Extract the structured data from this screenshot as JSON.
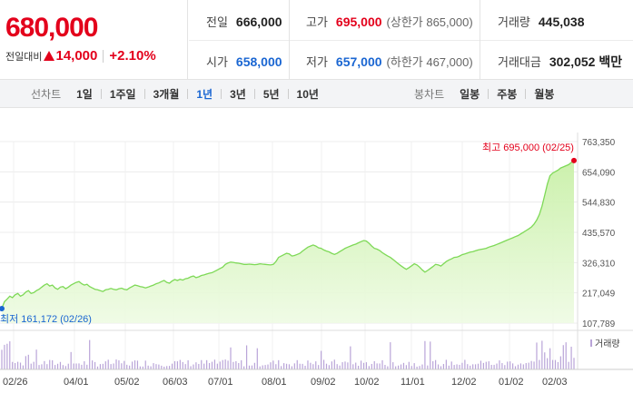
{
  "quote": {
    "price": "680,000",
    "change_label": "전일대비",
    "change_abs": "14,000",
    "change_pct": "+2.10%"
  },
  "stats": {
    "prev_close_label": "전일",
    "prev_close": "666,000",
    "high_label": "고가",
    "high": "695,000",
    "high_limit": "(상한가 865,000)",
    "volume_label": "거래량",
    "volume": "445,038",
    "open_label": "시가",
    "open": "658,000",
    "low_label": "저가",
    "low": "657,000",
    "low_limit": "(하한가 467,000)",
    "amount_label": "거래대금",
    "amount": "302,052 백만"
  },
  "tabs": {
    "line_title": "선차트",
    "line_tabs": [
      "1일",
      "1주일",
      "3개월",
      "1년",
      "3년",
      "5년",
      "10년"
    ],
    "line_active": "1년",
    "candle_title": "봉차트",
    "candle_tabs": [
      "일봉",
      "주봉",
      "월봉"
    ]
  },
  "colors": {
    "up": "#e3001b",
    "down": "#1a66d2",
    "line": "#7ed957",
    "volume": "#b9a4d8"
  },
  "chart_data": {
    "type": "area",
    "ylim": [
      107789,
      763350
    ],
    "y_ticks": [
      "763,350",
      "654,090",
      "544,830",
      "435,570",
      "326,310",
      "217,049",
      "107,789"
    ],
    "x_ticks": [
      "02/26",
      "04/01",
      "05/02",
      "06/03",
      "07/01",
      "08/01",
      "09/02",
      "10/02",
      "11/01",
      "12/02",
      "01/02",
      "02/03"
    ],
    "max_annotation": "최고 695,000 (02/25)",
    "min_annotation": "최저 161,172 (02/26)",
    "volume_legend": "거래량",
    "series_close": [
      161172,
      185000,
      195000,
      205000,
      200000,
      210000,
      215000,
      205000,
      210000,
      220000,
      225000,
      215000,
      218000,
      225000,
      230000,
      238000,
      245000,
      250000,
      242000,
      245000,
      235000,
      230000,
      238000,
      240000,
      232000,
      238000,
      245000,
      250000,
      255000,
      258000,
      250000,
      245000,
      248000,
      240000,
      235000,
      230000,
      228000,
      225000,
      222000,
      228000,
      230000,
      233000,
      230000,
      228000,
      232000,
      234000,
      230000,
      228000,
      235000,
      240000,
      245000,
      243000,
      240000,
      238000,
      235000,
      238000,
      242000,
      245000,
      250000,
      253000,
      258000,
      262000,
      255000,
      252000,
      260000,
      265000,
      262000,
      266000,
      263000,
      268000,
      270000,
      275000,
      278000,
      272000,
      275000,
      280000,
      282000,
      285000,
      288000,
      290000,
      295000,
      300000,
      305000,
      310000,
      320000,
      325000,
      328000,
      327000,
      325000,
      324000,
      322000,
      320000,
      320000,
      321000,
      320000,
      319000,
      320000,
      322000,
      321000,
      320000,
      319000,
      318000,
      320000,
      330000,
      345000,
      350000,
      355000,
      360000,
      358000,
      350000,
      352000,
      356000,
      360000,
      368000,
      375000,
      382000,
      386000,
      390000,
      386000,
      380000,
      378000,
      372000,
      368000,
      365000,
      360000,
      356000,
      360000,
      366000,
      372000,
      378000,
      382000,
      386000,
      390000,
      393000,
      398000,
      402000,
      406000,
      404000,
      396000,
      386000,
      378000,
      375000,
      370000,
      362000,
      356000,
      350000,
      345000,
      338000,
      330000,
      322000,
      315000,
      308000,
      302000,
      308000,
      315000,
      322000,
      318000,
      310000,
      300000,
      292000,
      298000,
      305000,
      312000,
      320000,
      318000,
      314000,
      322000,
      330000,
      336000,
      340000,
      345000,
      346000,
      350000,
      355000,
      358000,
      361000,
      364000,
      366000,
      369000,
      372000,
      374000,
      376000,
      378000,
      382000,
      385000,
      388000,
      392000,
      396000,
      400000,
      404000,
      408000,
      412000,
      416000,
      420000,
      424000,
      430000,
      436000,
      442000,
      448000,
      455000,
      465000,
      480000,
      500000,
      530000,
      570000,
      610000,
      640000,
      650000,
      655000,
      660000,
      668000,
      672000,
      676000,
      680000,
      688000,
      695000
    ]
  }
}
